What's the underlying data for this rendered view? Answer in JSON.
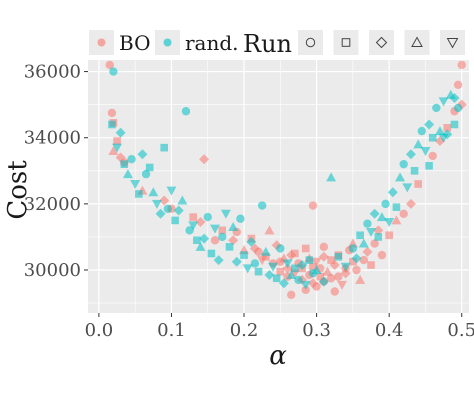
{
  "chart_data": {
    "type": "scatter",
    "xlabel": "α",
    "ylabel": "Cost",
    "xlim": [
      -0.015,
      0.51
    ],
    "ylim": [
      28700,
      36350
    ],
    "x_ticks": [
      0.0,
      0.1,
      0.2,
      0.3,
      0.4,
      0.5
    ],
    "x_tick_labels": [
      "0.0",
      "0.1",
      "0.2",
      "0.3",
      "0.4",
      "0.5"
    ],
    "y_ticks": [
      30000,
      32000,
      34000,
      36000
    ],
    "y_tick_labels": [
      "30000",
      "32000",
      "34000",
      "36000"
    ],
    "grid": true,
    "legend_position": "top",
    "legend": {
      "color_entries": [
        {
          "label": "BO",
          "color": "#F8766D"
        },
        {
          "label": "rand.",
          "color": "#00BFC4"
        }
      ],
      "shape_title": "Run",
      "shape_entries": [
        "circle",
        "square",
        "diamond",
        "triangle",
        "triangle-down"
      ]
    },
    "series": [
      {
        "name": "BO",
        "color": "#F8766D",
        "points": [
          [
            0.015,
            36200,
            0
          ],
          [
            0.018,
            34750,
            0
          ],
          [
            0.02,
            34450,
            1
          ],
          [
            0.02,
            33600,
            3
          ],
          [
            0.025,
            33900,
            1
          ],
          [
            0.03,
            33400,
            2
          ],
          [
            0.035,
            33250,
            0
          ],
          [
            0.06,
            32400,
            3
          ],
          [
            0.09,
            32100,
            2
          ],
          [
            0.1,
            31850,
            0
          ],
          [
            0.13,
            31600,
            1
          ],
          [
            0.14,
            31450,
            2
          ],
          [
            0.145,
            33350,
            2
          ],
          [
            0.16,
            30900,
            0
          ],
          [
            0.17,
            31200,
            1
          ],
          [
            0.185,
            30900,
            2
          ],
          [
            0.19,
            31150,
            0
          ],
          [
            0.2,
            30600,
            3
          ],
          [
            0.21,
            30950,
            1
          ],
          [
            0.215,
            30650,
            2
          ],
          [
            0.22,
            30550,
            0
          ],
          [
            0.225,
            30300,
            4
          ],
          [
            0.23,
            30400,
            1
          ],
          [
            0.235,
            31200,
            3
          ],
          [
            0.24,
            30200,
            0
          ],
          [
            0.245,
            30750,
            2
          ],
          [
            0.25,
            29950,
            1
          ],
          [
            0.25,
            30250,
            0
          ],
          [
            0.255,
            30350,
            3
          ],
          [
            0.26,
            29800,
            0
          ],
          [
            0.26,
            30050,
            2
          ],
          [
            0.265,
            29250,
            0
          ],
          [
            0.27,
            30500,
            1
          ],
          [
            0.27,
            29900,
            4
          ],
          [
            0.275,
            30200,
            0
          ],
          [
            0.28,
            29700,
            2
          ],
          [
            0.28,
            30050,
            1
          ],
          [
            0.285,
            29400,
            0
          ],
          [
            0.29,
            30350,
            3
          ],
          [
            0.29,
            29850,
            0
          ],
          [
            0.295,
            30100,
            1
          ],
          [
            0.295,
            29600,
            2
          ],
          [
            0.3,
            29500,
            0
          ],
          [
            0.3,
            30250,
            4
          ],
          [
            0.305,
            29800,
            1
          ],
          [
            0.305,
            30050,
            0
          ],
          [
            0.31,
            30400,
            2
          ],
          [
            0.31,
            29650,
            0
          ],
          [
            0.315,
            29950,
            3
          ],
          [
            0.32,
            29750,
            0
          ],
          [
            0.32,
            30300,
            1
          ],
          [
            0.325,
            29350,
            0
          ],
          [
            0.325,
            30150,
            2
          ],
          [
            0.33,
            29800,
            0
          ],
          [
            0.33,
            30450,
            1
          ],
          [
            0.335,
            29550,
            4
          ],
          [
            0.34,
            30050,
            0
          ],
          [
            0.34,
            29900,
            2
          ],
          [
            0.345,
            30600,
            0
          ],
          [
            0.35,
            30250,
            1
          ],
          [
            0.355,
            30000,
            0
          ],
          [
            0.36,
            29700,
            3
          ],
          [
            0.365,
            30300,
            0
          ],
          [
            0.37,
            30550,
            2
          ],
          [
            0.375,
            30150,
            1
          ],
          [
            0.38,
            30800,
            0
          ],
          [
            0.385,
            31200,
            2
          ],
          [
            0.39,
            30450,
            0
          ],
          [
            0.4,
            31050,
            1
          ],
          [
            0.41,
            31500,
            3
          ],
          [
            0.42,
            31700,
            0
          ],
          [
            0.43,
            32000,
            2
          ],
          [
            0.44,
            32600,
            1
          ],
          [
            0.46,
            33450,
            0
          ],
          [
            0.47,
            33900,
            2
          ],
          [
            0.48,
            34300,
            1
          ],
          [
            0.49,
            34800,
            0
          ],
          [
            0.495,
            35600,
            0
          ],
          [
            0.5,
            36200,
            0
          ],
          [
            0.5,
            35000,
            2
          ],
          [
            0.295,
            31950,
            0
          ],
          [
            0.285,
            30650,
            1
          ],
          [
            0.265,
            30450,
            2
          ],
          [
            0.31,
            30700,
            0
          ],
          [
            0.35,
            30800,
            3
          ]
        ]
      },
      {
        "name": "rand.",
        "color": "#00BFC4",
        "points": [
          [
            0.02,
            36000,
            0
          ],
          [
            0.018,
            34400,
            1
          ],
          [
            0.025,
            33700,
            4
          ],
          [
            0.03,
            34150,
            2
          ],
          [
            0.035,
            33200,
            1
          ],
          [
            0.04,
            32900,
            3
          ],
          [
            0.045,
            33350,
            0
          ],
          [
            0.05,
            32600,
            4
          ],
          [
            0.055,
            32300,
            1
          ],
          [
            0.06,
            33500,
            2
          ],
          [
            0.065,
            32900,
            0
          ],
          [
            0.07,
            33100,
            1
          ],
          [
            0.075,
            32350,
            3
          ],
          [
            0.08,
            32000,
            4
          ],
          [
            0.085,
            31700,
            2
          ],
          [
            0.09,
            33700,
            1
          ],
          [
            0.095,
            31850,
            0
          ],
          [
            0.1,
            32400,
            4
          ],
          [
            0.105,
            31500,
            1
          ],
          [
            0.11,
            31800,
            2
          ],
          [
            0.115,
            32100,
            3
          ],
          [
            0.12,
            34800,
            0
          ],
          [
            0.125,
            31200,
            0
          ],
          [
            0.13,
            31350,
            4
          ],
          [
            0.135,
            30900,
            1
          ],
          [
            0.14,
            30700,
            3
          ],
          [
            0.145,
            30950,
            2
          ],
          [
            0.15,
            31600,
            0
          ],
          [
            0.155,
            30500,
            1
          ],
          [
            0.16,
            31250,
            4
          ],
          [
            0.165,
            30300,
            2
          ],
          [
            0.17,
            31000,
            0
          ],
          [
            0.175,
            31700,
            4
          ],
          [
            0.18,
            30700,
            1
          ],
          [
            0.185,
            31300,
            3
          ],
          [
            0.19,
            30250,
            2
          ],
          [
            0.195,
            31550,
            0
          ],
          [
            0.2,
            30450,
            1
          ],
          [
            0.205,
            30050,
            4
          ],
          [
            0.21,
            30850,
            2
          ],
          [
            0.215,
            30200,
            0
          ],
          [
            0.22,
            29950,
            1
          ],
          [
            0.225,
            31950,
            0
          ],
          [
            0.23,
            30550,
            3
          ],
          [
            0.235,
            29850,
            2
          ],
          [
            0.24,
            30100,
            4
          ],
          [
            0.245,
            29750,
            1
          ],
          [
            0.25,
            30650,
            0
          ],
          [
            0.255,
            29600,
            2
          ],
          [
            0.26,
            30200,
            4
          ],
          [
            0.265,
            29850,
            3
          ],
          [
            0.27,
            30050,
            1
          ],
          [
            0.275,
            29700,
            0
          ],
          [
            0.28,
            30150,
            2
          ],
          [
            0.285,
            29550,
            4
          ],
          [
            0.29,
            30300,
            1
          ],
          [
            0.295,
            29900,
            0
          ],
          [
            0.3,
            30000,
            3
          ],
          [
            0.31,
            29650,
            2
          ],
          [
            0.32,
            32800,
            3
          ],
          [
            0.33,
            30400,
            1
          ],
          [
            0.34,
            30100,
            4
          ],
          [
            0.35,
            30650,
            0
          ],
          [
            0.355,
            30350,
            2
          ],
          [
            0.36,
            31050,
            1
          ],
          [
            0.365,
            30800,
            3
          ],
          [
            0.37,
            31400,
            0
          ],
          [
            0.375,
            31150,
            4
          ],
          [
            0.38,
            31700,
            2
          ],
          [
            0.385,
            31000,
            1
          ],
          [
            0.39,
            31600,
            3
          ],
          [
            0.395,
            32000,
            0
          ],
          [
            0.4,
            31450,
            4
          ],
          [
            0.405,
            32350,
            2
          ],
          [
            0.41,
            31900,
            1
          ],
          [
            0.415,
            32800,
            3
          ],
          [
            0.42,
            33200,
            0
          ],
          [
            0.425,
            32500,
            4
          ],
          [
            0.43,
            33500,
            2
          ],
          [
            0.435,
            33000,
            1
          ],
          [
            0.44,
            33800,
            3
          ],
          [
            0.445,
            34200,
            0
          ],
          [
            0.45,
            33600,
            4
          ],
          [
            0.455,
            34400,
            2
          ],
          [
            0.46,
            34000,
            1
          ],
          [
            0.465,
            34900,
            0
          ],
          [
            0.47,
            34200,
            3
          ],
          [
            0.475,
            35100,
            4
          ],
          [
            0.48,
            34100,
            2
          ],
          [
            0.485,
            35300,
            3
          ],
          [
            0.49,
            34400,
            1
          ],
          [
            0.495,
            34900,
            0
          ],
          [
            0.49,
            35200,
            2
          ],
          [
            0.475,
            34000,
            4
          ],
          [
            0.455,
            33150,
            1
          ]
        ]
      }
    ]
  }
}
